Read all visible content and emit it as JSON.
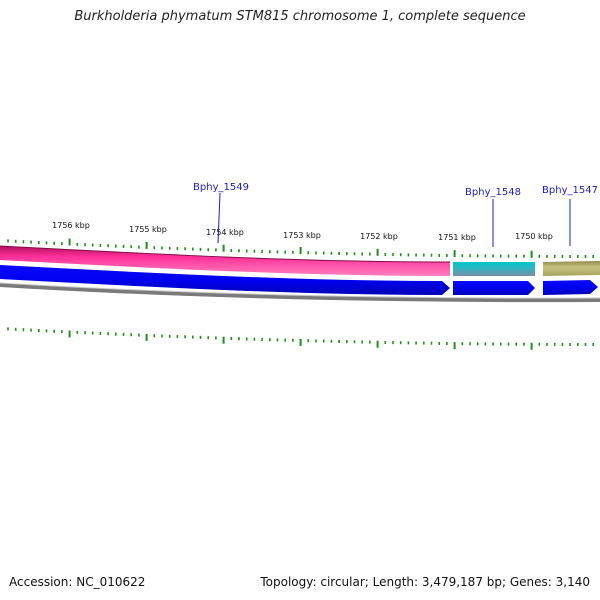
{
  "title": "Burkholderia phymatum STM815 chromosome 1, complete sequence",
  "footer": {
    "accession": "Accession: NC_010622",
    "summary": "Topology: circular; Length: 3,479,187 bp; Genes: 3,140"
  },
  "scale": {
    "labels": [
      "1756 kbp",
      "1755 kbp",
      "1754 kbp",
      "1753 kbp",
      "1752 kbp",
      "1751 kbp",
      "1750 kbp"
    ]
  },
  "genes": [
    {
      "name": "Bphy_1549",
      "color": "#ff1493"
    },
    {
      "name": "Bphy_1548",
      "color": "#00c8c8"
    },
    {
      "name": "Bphy_1547",
      "color": "#bdb76b"
    }
  ],
  "colors": {
    "forward_strand": "#0000ff",
    "gene_label": "#1f1fb8",
    "tick": "#228b22",
    "backbone": "#808080"
  }
}
